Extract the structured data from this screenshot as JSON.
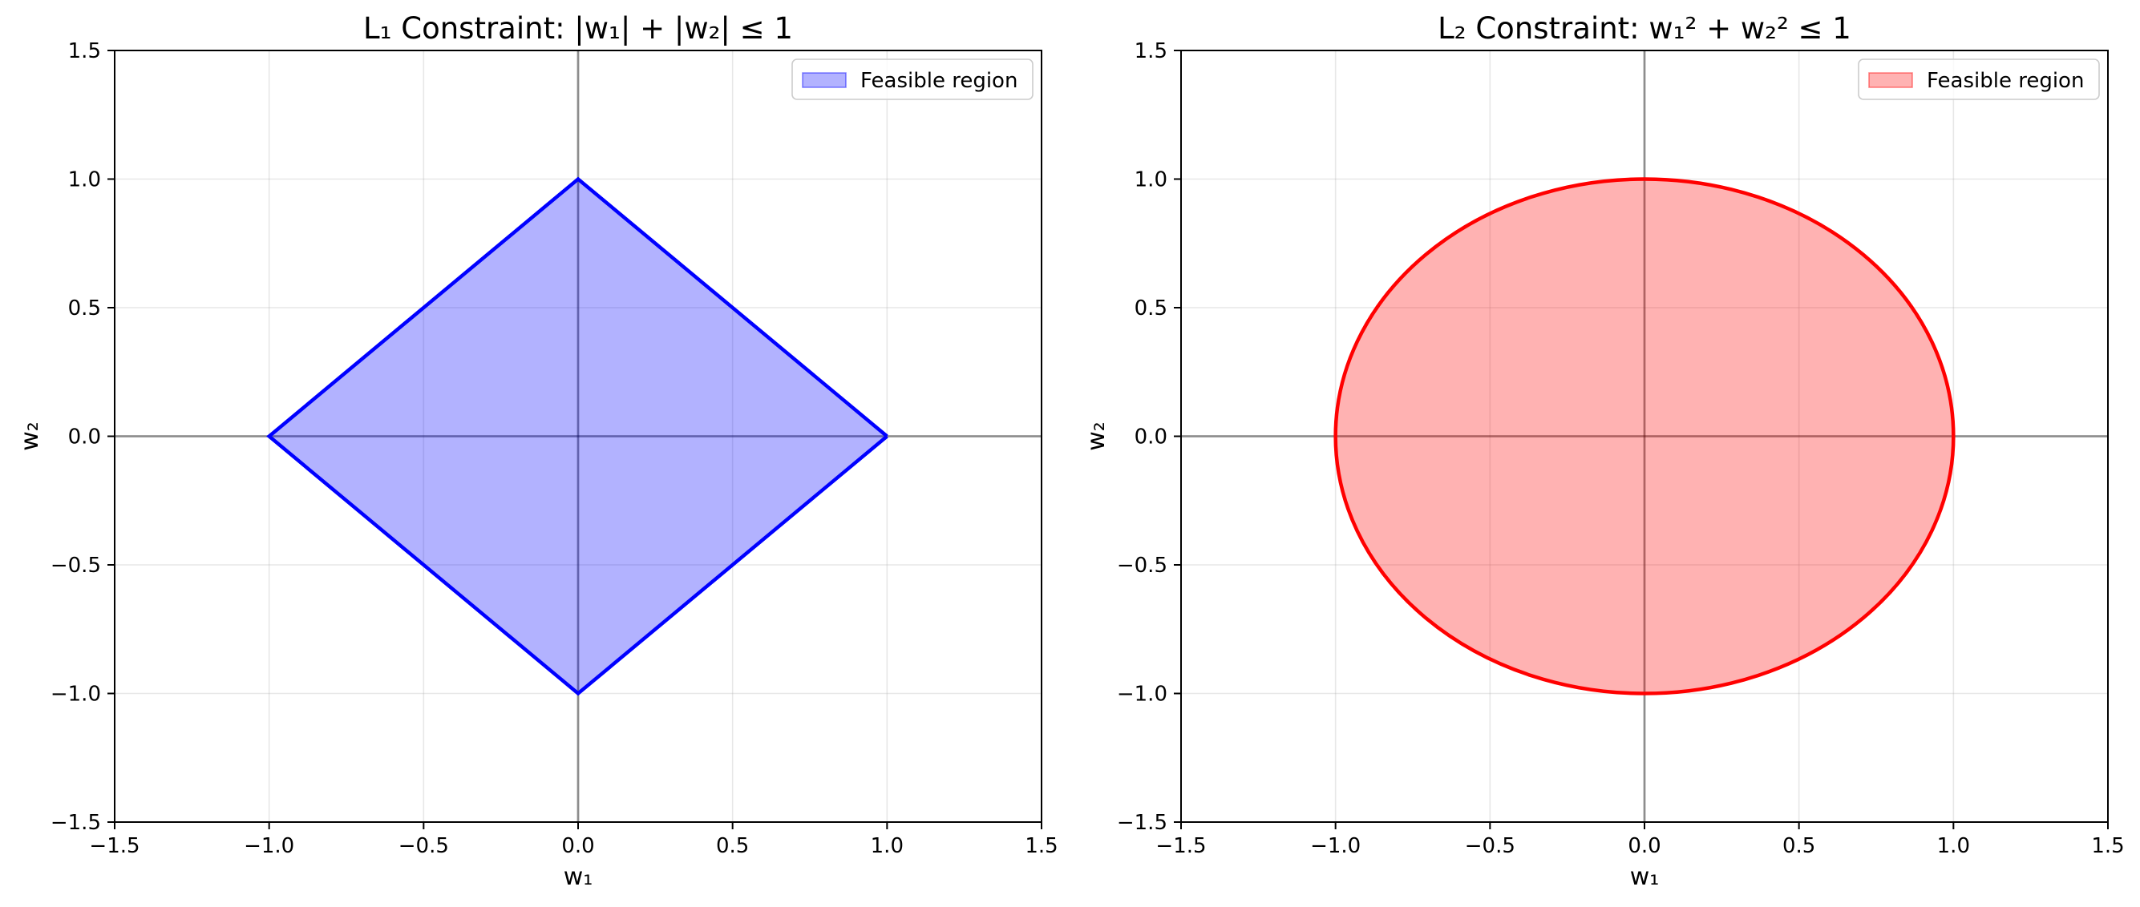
{
  "chart_data": [
    {
      "type": "area",
      "shape": "diamond",
      "title": "L₁ Constraint: |w₁| + |w₂| ≤ 1",
      "xlabel": "w₁",
      "ylabel": "w₂",
      "xlim": [
        -1.5,
        1.5
      ],
      "ylim": [
        -1.5,
        1.5
      ],
      "xticks": [
        -1.5,
        -1.0,
        -0.5,
        0.0,
        0.5,
        1.0,
        1.5
      ],
      "yticks": [
        -1.5,
        -1.0,
        -0.5,
        0.0,
        0.5,
        1.0,
        1.5
      ],
      "xtick_labels": [
        "−1.5",
        "−1.0",
        "−0.5",
        "0.0",
        "0.5",
        "1.0",
        "1.5"
      ],
      "ytick_labels": [
        "−1.5",
        "−1.0",
        "−0.5",
        "0.0",
        "0.5",
        "1.0",
        "1.5"
      ],
      "grid": true,
      "legend_position": "top-right",
      "series": [
        {
          "name": "Feasible region",
          "x": [
            1,
            0,
            -1,
            0,
            1
          ],
          "y": [
            0,
            1,
            0,
            -1,
            0
          ],
          "fill_color": "#0000ff",
          "fill_opacity": 0.3,
          "line_color": "#0000ff"
        }
      ]
    },
    {
      "type": "area",
      "shape": "circle",
      "title": "L₂ Constraint: w₁² + w₂² ≤ 1",
      "xlabel": "w₁",
      "ylabel": "w₂",
      "xlim": [
        -1.5,
        1.5
      ],
      "ylim": [
        -1.5,
        1.5
      ],
      "xticks": [
        -1.5,
        -1.0,
        -0.5,
        0.0,
        0.5,
        1.0,
        1.5
      ],
      "yticks": [
        -1.5,
        -1.0,
        -0.5,
        0.0,
        0.5,
        1.0,
        1.5
      ],
      "xtick_labels": [
        "−1.5",
        "−1.0",
        "−0.5",
        "0.0",
        "0.5",
        "1.0",
        "1.5"
      ],
      "ytick_labels": [
        "−1.5",
        "−1.0",
        "−0.5",
        "0.0",
        "0.5",
        "1.0",
        "1.5"
      ],
      "grid": true,
      "legend_position": "top-right",
      "series": [
        {
          "name": "Feasible region",
          "center": [
            0,
            0
          ],
          "radius": 1,
          "fill_color": "#ff0000",
          "fill_opacity": 0.3,
          "line_color": "#ff0000"
        }
      ]
    }
  ]
}
